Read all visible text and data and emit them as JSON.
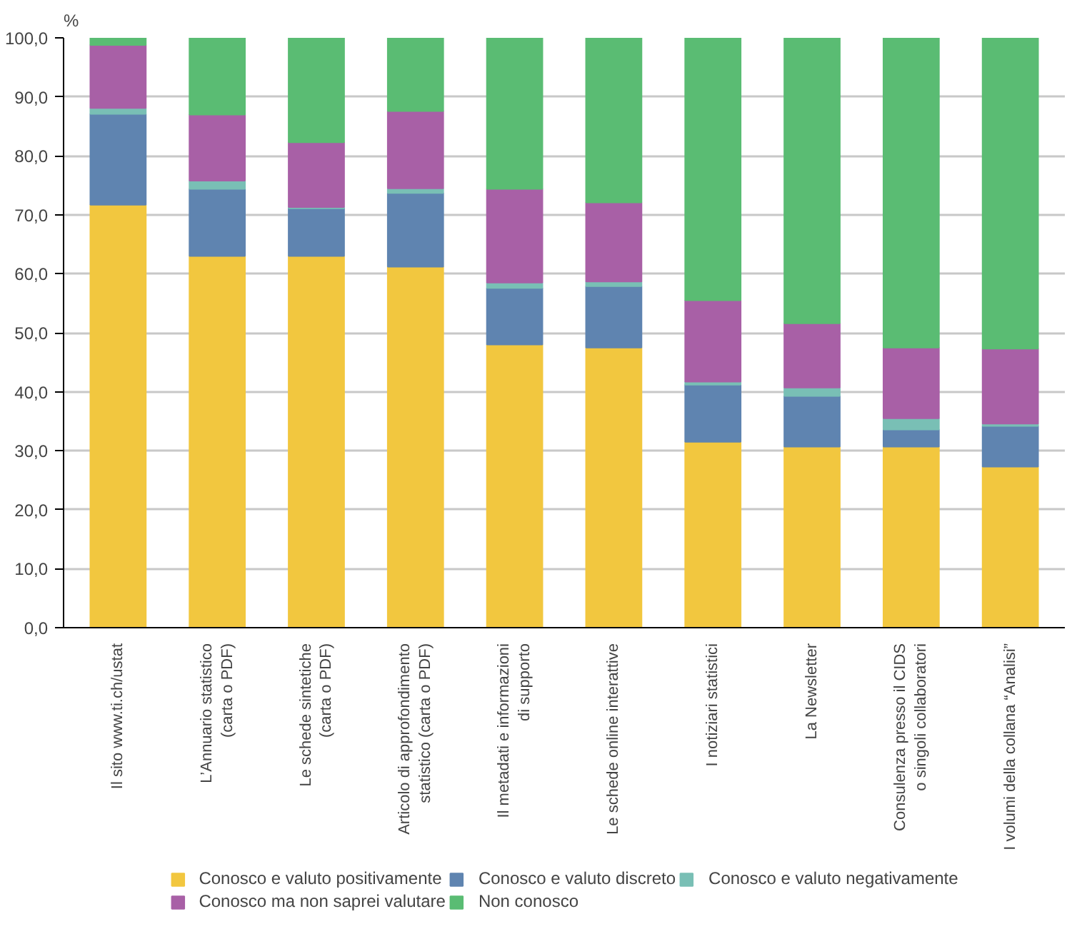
{
  "chart_data": {
    "type": "bar",
    "stacked": true,
    "ylabel": "%",
    "categories": [
      "Il sito www.ti.ch/ustat",
      "L’Annuario statistico\n(carta o PDF)",
      "Le schede sintetiche\n(carta o PDF)",
      "Articolo di approfondimento\nstatistico (carta o PDF)",
      "Il metadati e informazioni\ndi supporto",
      "Le schede online interattive",
      "I notiziari statistici",
      "La Newsletter",
      "Consulenza presso il CIDS\no singoli collaboratori",
      "I volumi della collana “Analisi”"
    ],
    "series": [
      {
        "name": "Conosco e valuto positivamente",
        "color": "#f2c73f",
        "values": [
          71.7,
          63.0,
          63.0,
          61.2,
          48.0,
          47.5,
          31.5,
          30.7,
          30.7,
          27.3
        ]
      },
      {
        "name": "Conosco e valuto discreto",
        "color": "#5f84b0",
        "values": [
          15.4,
          11.4,
          8.1,
          12.5,
          9.6,
          10.4,
          9.7,
          8.6,
          2.9,
          6.9
        ]
      },
      {
        "name": "Conosco e valuto negativamente",
        "color": "#79bfb5",
        "values": [
          1.0,
          1.4,
          0.2,
          0.8,
          0.9,
          0.8,
          0.5,
          1.4,
          1.9,
          0.4
        ]
      },
      {
        "name": "Conosco ma non saprei valutare",
        "color": "#a860a6",
        "values": [
          10.7,
          11.2,
          11.0,
          13.1,
          15.9,
          13.4,
          13.8,
          10.9,
          12.0,
          12.7
        ]
      },
      {
        "name": "Non conosco",
        "color": "#5abc73",
        "values": [
          1.2,
          13.0,
          17.7,
          12.4,
          25.6,
          27.9,
          44.5,
          48.4,
          52.5,
          52.7
        ]
      }
    ],
    "ylim": [
      0,
      100
    ],
    "yticks": [
      {
        "value": 0,
        "label": "0,0"
      },
      {
        "value": 10,
        "label": "10,0"
      },
      {
        "value": 20,
        "label": "20,0"
      },
      {
        "value": 30,
        "label": "30,0"
      },
      {
        "value": 40,
        "label": "40,0"
      },
      {
        "value": 50,
        "label": "50,0"
      },
      {
        "value": 60,
        "label": "60,0"
      },
      {
        "value": 70,
        "label": "70,0"
      },
      {
        "value": 80,
        "label": "80,0"
      },
      {
        "value": 90,
        "label": "90,0"
      },
      {
        "value": 100,
        "label": "100,0"
      }
    ],
    "grid": "y",
    "legend": "bottom"
  }
}
